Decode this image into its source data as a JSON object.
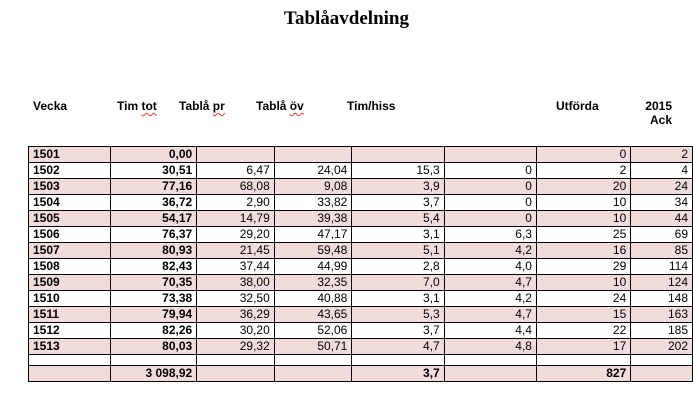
{
  "title": "Tablåavdelning",
  "headers": {
    "vecka": "Vecka",
    "tim_tot": "Tim tot",
    "tabla_pr": "Tablå pr",
    "tabla_ov": "Tablå öv",
    "tim_hiss": "Tim/hiss",
    "utforda": "Utförda",
    "ack_year": "2015",
    "ack": "Ack"
  },
  "rows": [
    {
      "vecka": "1501",
      "tim_tot": "0,00",
      "tabla_pr": "",
      "tabla_ov": "",
      "tim_hiss": "",
      "col6": "",
      "utforda": "0",
      "ack": "2"
    },
    {
      "vecka": "1502",
      "tim_tot": "30,51",
      "tabla_pr": "6,47",
      "tabla_ov": "24,04",
      "tim_hiss": "15,3",
      "col6": "0",
      "utforda": "2",
      "ack": "4"
    },
    {
      "vecka": "1503",
      "tim_tot": "77,16",
      "tabla_pr": "68,08",
      "tabla_ov": "9,08",
      "tim_hiss": "3,9",
      "col6": "0",
      "utforda": "20",
      "ack": "24"
    },
    {
      "vecka": "1504",
      "tim_tot": "36,72",
      "tabla_pr": "2,90",
      "tabla_ov": "33,82",
      "tim_hiss": "3,7",
      "col6": "0",
      "utforda": "10",
      "ack": "34"
    },
    {
      "vecka": "1505",
      "tim_tot": "54,17",
      "tabla_pr": "14,79",
      "tabla_ov": "39,38",
      "tim_hiss": "5,4",
      "col6": "0",
      "utforda": "10",
      "ack": "44"
    },
    {
      "vecka": "1506",
      "tim_tot": "76,37",
      "tabla_pr": "29,20",
      "tabla_ov": "47,17",
      "tim_hiss": "3,1",
      "col6": "6,3",
      "utforda": "25",
      "ack": "69"
    },
    {
      "vecka": "1507",
      "tim_tot": "80,93",
      "tabla_pr": "21,45",
      "tabla_ov": "59,48",
      "tim_hiss": "5,1",
      "col6": "4,2",
      "utforda": "16",
      "ack": "85"
    },
    {
      "vecka": "1508",
      "tim_tot": "82,43",
      "tabla_pr": "37,44",
      "tabla_ov": "44,99",
      "tim_hiss": "2,8",
      "col6": "4,0",
      "utforda": "29",
      "ack": "114"
    },
    {
      "vecka": "1509",
      "tim_tot": "70,35",
      "tabla_pr": "38,00",
      "tabla_ov": "32,35",
      "tim_hiss": "7,0",
      "col6": "4,7",
      "utforda": "10",
      "ack": "124"
    },
    {
      "vecka": "1510",
      "tim_tot": "73,38",
      "tabla_pr": "32,50",
      "tabla_ov": "40,88",
      "tim_hiss": "3,1",
      "col6": "4,2",
      "utforda": "24",
      "ack": "148"
    },
    {
      "vecka": "1511",
      "tim_tot": "79,94",
      "tabla_pr": "36,29",
      "tabla_ov": "43,65",
      "tim_hiss": "5,3",
      "col6": "4,7",
      "utforda": "15",
      "ack": "163"
    },
    {
      "vecka": "1512",
      "tim_tot": "82,26",
      "tabla_pr": "30,20",
      "tabla_ov": "52,06",
      "tim_hiss": "3,7",
      "col6": "4,4",
      "utforda": "22",
      "ack": "185"
    },
    {
      "vecka": "1513",
      "tim_tot": "80,03",
      "tabla_pr": "29,32",
      "tabla_ov": "50,71",
      "tim_hiss": "4,7",
      "col6": "4,8",
      "utforda": "17",
      "ack": "202"
    }
  ],
  "totals": {
    "tim_tot": "3 098,92",
    "tim_hiss": "3,7",
    "utforda": "827"
  },
  "colors": {
    "row_shade": "#f2dcdb",
    "border": "#000000"
  }
}
